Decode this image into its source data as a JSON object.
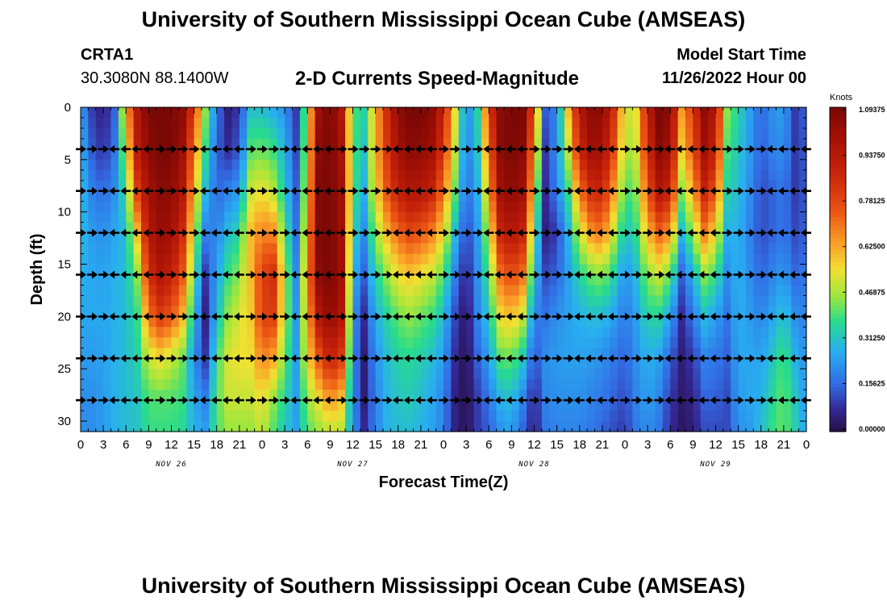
{
  "page": {
    "title": "University of Southern Mississippi Ocean Cube (AMSEAS)",
    "station_id": "CRTA1",
    "station_coords": "30.3080N  88.1400W",
    "subtitle": "2-D Currents Speed-Magnitude",
    "model_start_label": "Model Start Time",
    "model_start_value": "11/26/2022 Hour 00",
    "footer_title": "University of Southern Mississippi Ocean Cube (AMSEAS)"
  },
  "chart_data": {
    "type": "heatmap",
    "title": "2-D Currents Speed-Magnitude",
    "xlabel": "Forecast Time(Z)",
    "ylabel": "Depth (ft)",
    "xlim": [
      0,
      96
    ],
    "ylim": [
      31,
      0
    ],
    "x_ticks": [
      0,
      3,
      6,
      9,
      12,
      15,
      18,
      21,
      24,
      27,
      30,
      33,
      36,
      39,
      42,
      45,
      48,
      51,
      54,
      57,
      60,
      63,
      66,
      69,
      72,
      75,
      78,
      81,
      84,
      87,
      90,
      93,
      96
    ],
    "x_tick_labels": [
      "0",
      "3",
      "6",
      "9",
      "12",
      "15",
      "18",
      "21",
      "0",
      "3",
      "6",
      "9",
      "12",
      "15",
      "18",
      "21",
      "0",
      "3",
      "6",
      "9",
      "12",
      "15",
      "18",
      "21",
      "0",
      "3",
      "6",
      "9",
      "12",
      "15",
      "18",
      "21",
      "0"
    ],
    "y_ticks": [
      0,
      5,
      10,
      15,
      20,
      25,
      30
    ],
    "date_labels": [
      {
        "label": "NOV 26",
        "hour": 12
      },
      {
        "label": "NOV 27",
        "hour": 36
      },
      {
        "label": "NOV 28",
        "hour": 60
      },
      {
        "label": "NOV 29",
        "hour": 84
      }
    ],
    "colorbar": {
      "units": "Knots",
      "min": 0.0,
      "max": 1.09375,
      "tick_labels": [
        "1.09375",
        "0.93750",
        "0.78125",
        "0.62500",
        "0.46875",
        "0.31250",
        "0.15625",
        "0.00000"
      ],
      "tick_values": [
        1.09375,
        0.9375,
        0.78125,
        0.625,
        0.46875,
        0.3125,
        0.15625,
        0.0
      ]
    },
    "depth_profile": [
      0,
      4,
      8,
      12,
      16,
      20,
      24,
      28,
      31
    ],
    "time_profile": [
      0,
      1.5,
      3,
      4.5,
      6,
      7.5,
      9,
      10.5,
      12,
      13.5,
      15,
      16.5,
      18,
      19.5,
      21,
      22.5,
      24,
      25.5,
      27,
      28.5,
      30,
      31.5,
      33,
      34.5,
      36,
      37.5,
      39,
      40.5,
      42,
      43.5,
      45,
      46.5,
      48,
      49.5,
      51,
      52.5,
      54,
      55.5,
      57,
      58.5,
      60,
      61.5,
      63,
      64.5,
      66,
      67.5,
      69,
      70.5,
      72,
      73.5,
      75,
      76.5,
      78,
      79.5,
      81,
      82.5,
      84,
      85.5,
      87,
      88.5,
      90,
      91.5,
      93,
      94.5,
      96
    ],
    "speed_columns_by_time": [
      [
        0.25,
        0.28,
        0.3,
        0.3,
        0.28,
        0.26,
        0.24,
        0.22,
        0.22
      ],
      [
        0.1,
        0.14,
        0.2,
        0.24,
        0.26,
        0.26,
        0.24,
        0.22,
        0.22
      ],
      [
        0.05,
        0.08,
        0.16,
        0.22,
        0.25,
        0.26,
        0.25,
        0.24,
        0.24
      ],
      [
        0.15,
        0.18,
        0.22,
        0.26,
        0.28,
        0.28,
        0.28,
        0.28,
        0.28
      ],
      [
        0.6,
        0.5,
        0.38,
        0.3,
        0.3,
        0.3,
        0.3,
        0.3,
        0.3
      ],
      [
        0.95,
        0.92,
        0.8,
        0.6,
        0.45,
        0.38,
        0.35,
        0.32,
        0.32
      ],
      [
        1.09,
        1.05,
        1.0,
        0.95,
        0.85,
        0.7,
        0.5,
        0.4,
        0.38
      ],
      [
        1.09,
        1.09,
        1.05,
        1.02,
        0.95,
        0.8,
        0.55,
        0.4,
        0.38
      ],
      [
        1.09,
        1.09,
        1.05,
        1.0,
        0.9,
        0.75,
        0.5,
        0.4,
        0.38
      ],
      [
        1.05,
        1.0,
        0.95,
        0.85,
        0.75,
        0.6,
        0.42,
        0.38,
        0.36
      ],
      [
        0.8,
        0.7,
        0.6,
        0.5,
        0.4,
        0.3,
        0.22,
        0.26,
        0.28
      ],
      [
        0.45,
        0.38,
        0.3,
        0.2,
        0.1,
        0.06,
        0.1,
        0.2,
        0.25
      ],
      [
        0.18,
        0.15,
        0.15,
        0.2,
        0.25,
        0.3,
        0.38,
        0.4,
        0.4
      ],
      [
        0.05,
        0.08,
        0.2,
        0.3,
        0.38,
        0.45,
        0.52,
        0.5,
        0.45
      ],
      [
        0.1,
        0.14,
        0.24,
        0.36,
        0.45,
        0.52,
        0.55,
        0.5,
        0.45
      ],
      [
        0.3,
        0.4,
        0.5,
        0.6,
        0.6,
        0.58,
        0.55,
        0.5,
        0.45
      ],
      [
        0.3,
        0.42,
        0.55,
        0.68,
        0.8,
        0.8,
        0.68,
        0.55,
        0.5
      ],
      [
        0.26,
        0.38,
        0.48,
        0.66,
        0.85,
        0.8,
        0.62,
        0.45,
        0.4
      ],
      [
        0.22,
        0.28,
        0.32,
        0.4,
        0.48,
        0.48,
        0.42,
        0.35,
        0.32
      ],
      [
        0.1,
        0.12,
        0.15,
        0.18,
        0.22,
        0.24,
        0.25,
        0.25,
        0.25
      ],
      [
        0.5,
        0.52,
        0.55,
        0.6,
        0.65,
        0.6,
        0.55,
        0.45,
        0.4
      ],
      [
        1.0,
        1.05,
        1.07,
        1.07,
        1.05,
        0.95,
        0.75,
        0.55,
        0.45
      ],
      [
        1.09,
        1.09,
        1.09,
        1.09,
        1.09,
        1.05,
        0.9,
        0.65,
        0.5
      ],
      [
        0.95,
        0.98,
        1.0,
        1.0,
        1.0,
        0.95,
        0.8,
        0.58,
        0.48
      ],
      [
        0.4,
        0.4,
        0.4,
        0.35,
        0.3,
        0.24,
        0.22,
        0.22,
        0.24
      ],
      [
        0.35,
        0.32,
        0.28,
        0.22,
        0.15,
        0.08,
        0.05,
        0.05,
        0.08
      ],
      [
        0.6,
        0.6,
        0.55,
        0.45,
        0.35,
        0.28,
        0.22,
        0.2,
        0.2
      ],
      [
        0.85,
        0.82,
        0.75,
        0.6,
        0.45,
        0.35,
        0.3,
        0.28,
        0.28
      ],
      [
        1.05,
        1.0,
        0.9,
        0.72,
        0.55,
        0.42,
        0.35,
        0.32,
        0.3
      ],
      [
        1.09,
        1.05,
        0.95,
        0.78,
        0.58,
        0.45,
        0.36,
        0.33,
        0.3
      ],
      [
        1.09,
        1.05,
        0.95,
        0.75,
        0.55,
        0.42,
        0.34,
        0.3,
        0.28
      ],
      [
        1.05,
        1.0,
        0.88,
        0.68,
        0.5,
        0.38,
        0.3,
        0.26,
        0.25
      ],
      [
        0.88,
        0.82,
        0.7,
        0.55,
        0.4,
        0.3,
        0.24,
        0.2,
        0.2
      ],
      [
        0.55,
        0.5,
        0.42,
        0.3,
        0.2,
        0.12,
        0.08,
        0.06,
        0.06
      ],
      [
        0.2,
        0.18,
        0.15,
        0.1,
        0.05,
        0.02,
        0.01,
        0.01,
        0.02
      ],
      [
        0.35,
        0.32,
        0.28,
        0.24,
        0.22,
        0.2,
        0.15,
        0.1,
        0.1
      ],
      [
        0.8,
        0.72,
        0.62,
        0.5,
        0.4,
        0.32,
        0.25,
        0.18,
        0.15
      ],
      [
        1.05,
        1.05,
        1.0,
        0.88,
        0.7,
        0.55,
        0.4,
        0.28,
        0.22
      ],
      [
        1.09,
        1.09,
        1.05,
        0.95,
        0.78,
        0.6,
        0.42,
        0.3,
        0.25
      ],
      [
        1.09,
        1.05,
        1.0,
        0.88,
        0.7,
        0.5,
        0.32,
        0.2,
        0.15
      ],
      [
        0.75,
        0.65,
        0.55,
        0.42,
        0.3,
        0.2,
        0.12,
        0.06,
        0.05
      ],
      [
        0.15,
        0.1,
        0.08,
        0.06,
        0.12,
        0.18,
        0.22,
        0.2,
        0.18
      ],
      [
        0.2,
        0.22,
        0.2,
        0.1,
        0.15,
        0.22,
        0.24,
        0.22,
        0.2
      ],
      [
        0.6,
        0.5,
        0.38,
        0.28,
        0.25,
        0.25,
        0.25,
        0.22,
        0.2
      ],
      [
        0.95,
        0.88,
        0.7,
        0.5,
        0.35,
        0.28,
        0.25,
        0.22,
        0.2
      ],
      [
        1.05,
        1.0,
        0.85,
        0.65,
        0.42,
        0.3,
        0.24,
        0.2,
        0.18
      ],
      [
        1.05,
        1.0,
        0.88,
        0.7,
        0.45,
        0.3,
        0.22,
        0.18,
        0.15
      ],
      [
        0.85,
        0.78,
        0.65,
        0.5,
        0.35,
        0.25,
        0.18,
        0.15,
        0.12
      ],
      [
        0.5,
        0.45,
        0.38,
        0.3,
        0.22,
        0.18,
        0.15,
        0.12,
        0.1
      ],
      [
        0.55,
        0.52,
        0.45,
        0.38,
        0.3,
        0.25,
        0.22,
        0.2,
        0.18
      ],
      [
        0.9,
        0.85,
        0.75,
        0.6,
        0.45,
        0.35,
        0.28,
        0.25,
        0.22
      ],
      [
        1.09,
        1.05,
        0.95,
        0.72,
        0.5,
        0.35,
        0.25,
        0.2,
        0.18
      ],
      [
        1.05,
        1.0,
        0.88,
        0.65,
        0.42,
        0.25,
        0.15,
        0.1,
        0.08
      ],
      [
        0.65,
        0.58,
        0.45,
        0.3,
        0.15,
        0.08,
        0.05,
        0.04,
        0.03
      ],
      [
        0.8,
        0.75,
        0.62,
        0.45,
        0.28,
        0.18,
        0.1,
        0.06,
        0.05
      ],
      [
        1.05,
        1.0,
        0.88,
        0.68,
        0.45,
        0.3,
        0.2,
        0.15,
        0.12
      ],
      [
        0.95,
        0.88,
        0.75,
        0.55,
        0.38,
        0.25,
        0.18,
        0.15,
        0.12
      ],
      [
        0.45,
        0.4,
        0.35,
        0.28,
        0.22,
        0.18,
        0.15,
        0.12,
        0.12
      ],
      [
        0.35,
        0.32,
        0.3,
        0.28,
        0.28,
        0.28,
        0.26,
        0.24,
        0.22
      ],
      [
        0.25,
        0.24,
        0.22,
        0.2,
        0.22,
        0.24,
        0.26,
        0.26,
        0.24
      ],
      [
        0.15,
        0.14,
        0.12,
        0.12,
        0.15,
        0.2,
        0.25,
        0.28,
        0.3
      ],
      [
        0.22,
        0.2,
        0.15,
        0.15,
        0.2,
        0.26,
        0.32,
        0.36,
        0.38
      ],
      [
        0.25,
        0.22,
        0.18,
        0.18,
        0.24,
        0.32,
        0.4,
        0.42,
        0.42
      ],
      [
        0.1,
        0.1,
        0.1,
        0.12,
        0.16,
        0.22,
        0.28,
        0.32,
        0.34
      ],
      [
        0.15,
        0.14,
        0.14,
        0.15,
        0.18,
        0.2,
        0.22,
        0.24,
        0.25
      ]
    ]
  }
}
